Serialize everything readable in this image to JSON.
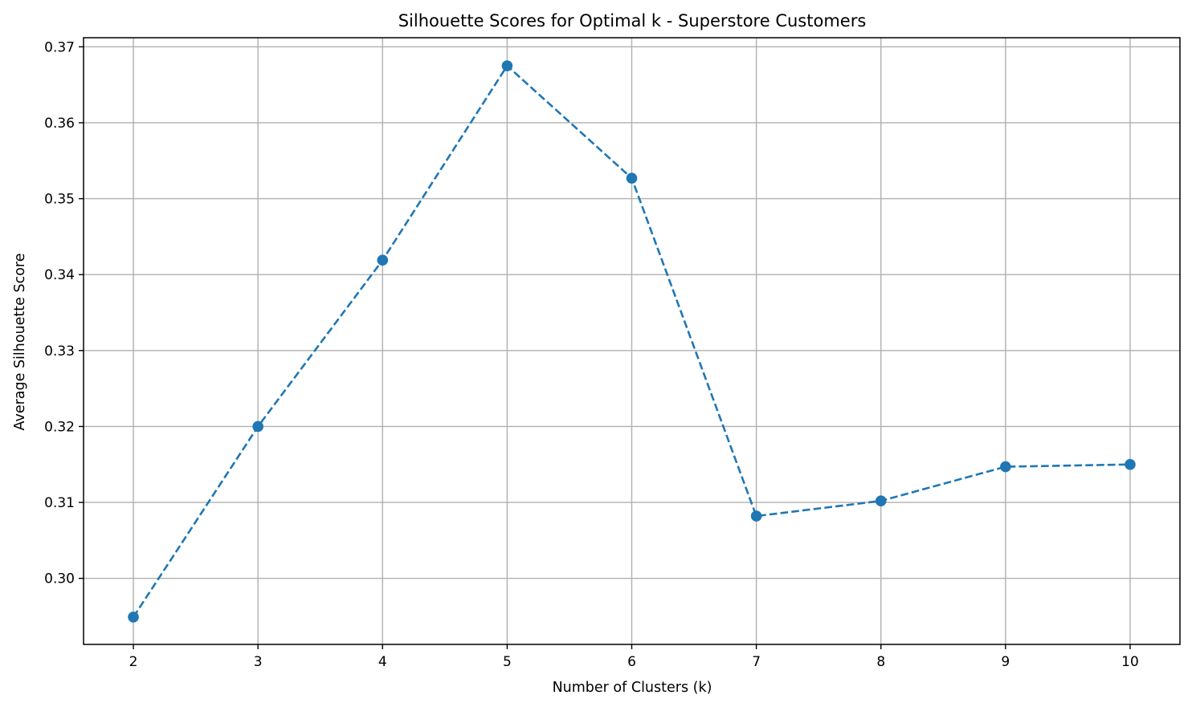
{
  "chart_data": {
    "type": "line",
    "title": "Silhouette Scores for Optimal k - Superstore Customers",
    "xlabel": "Number of Clusters (k)",
    "ylabel": "Average Silhouette Score",
    "x": [
      2,
      3,
      4,
      5,
      6,
      7,
      8,
      9,
      10
    ],
    "series": [
      {
        "values": [
          0.2949,
          0.32,
          0.3419,
          0.3675,
          0.3527,
          0.3082,
          0.3102,
          0.3147,
          0.315
        ],
        "color": "#1f77b4",
        "line_style": "dashed",
        "marker": "circle"
      }
    ],
    "xticks": [
      "2",
      "3",
      "4",
      "5",
      "6",
      "7",
      "8",
      "9",
      "10"
    ],
    "yticks": [
      "0.30",
      "0.31",
      "0.32",
      "0.33",
      "0.34",
      "0.35",
      "0.36",
      "0.37"
    ],
    "ytick_values": [
      0.3,
      0.31,
      0.32,
      0.33,
      0.34,
      0.35,
      0.36,
      0.37
    ],
    "xlim": [
      1.6,
      10.4
    ],
    "ylim": [
      0.2913,
      0.3712
    ],
    "grid": true
  }
}
